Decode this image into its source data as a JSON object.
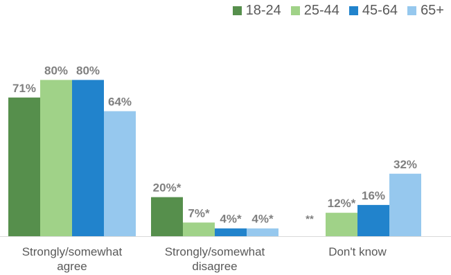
{
  "chart_data": {
    "type": "bar",
    "categories": [
      "Strongly/somewhat agree",
      "Strongly/somewhat disagree",
      "Don't know"
    ],
    "category_lines": [
      [
        "Strongly/somewhat",
        "agree"
      ],
      [
        "Strongly/somewhat",
        "disagree"
      ],
      [
        "Don't know"
      ]
    ],
    "series": [
      {
        "name": "18-24",
        "color": "#568F4C",
        "values": [
          71,
          20,
          null
        ],
        "labels": [
          "71%",
          "20%*",
          "**"
        ]
      },
      {
        "name": "25-44",
        "color": "#A0D288",
        "values": [
          80,
          7,
          12
        ],
        "labels": [
          "80%",
          "7%*",
          "12%*"
        ]
      },
      {
        "name": "45-64",
        "color": "#2183CC",
        "values": [
          80,
          4,
          16
        ],
        "labels": [
          "80%",
          "4%*",
          "16%"
        ]
      },
      {
        "name": "65+",
        "color": "#96C8EE",
        "values": [
          64,
          4,
          32
        ],
        "labels": [
          "64%",
          "4%*",
          "32%"
        ]
      }
    ],
    "ylim": [
      0,
      100
    ],
    "legend_position": "top-right",
    "grid": false,
    "text_color": "#595959",
    "axis_color": "#D9D9D9"
  }
}
